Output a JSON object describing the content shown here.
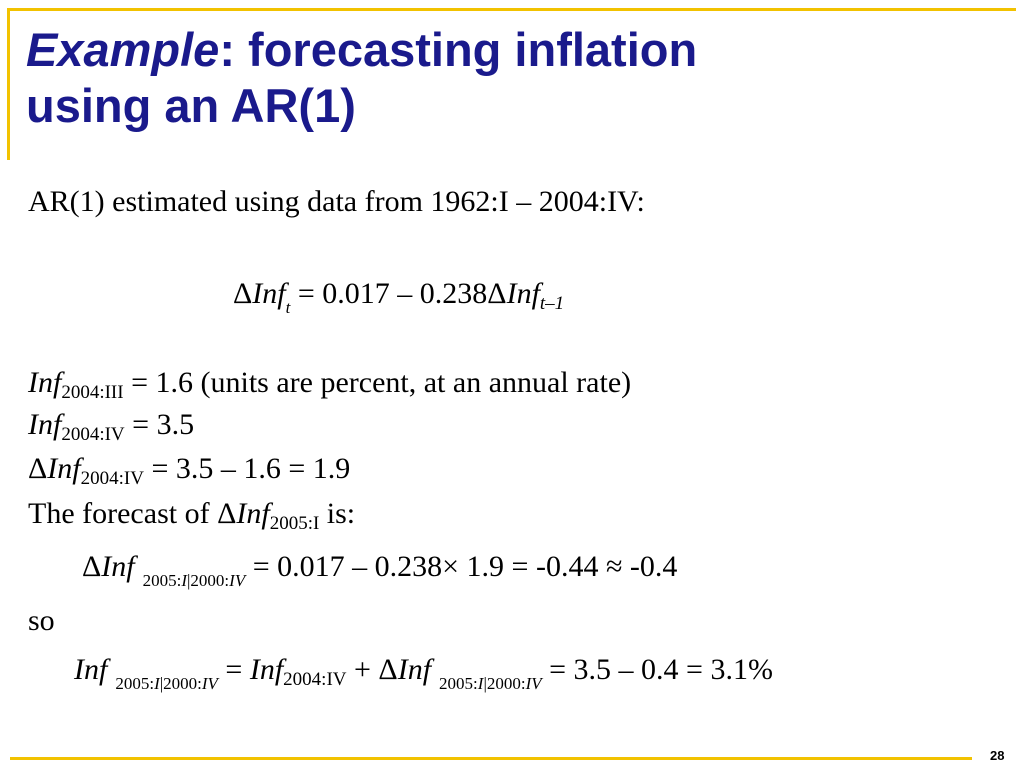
{
  "slide": {
    "title_italic": "Example",
    "title_line1_rest": ":  forecasting inflation",
    "title_line2": "using an AR(1)",
    "page_number": "28",
    "accent_color": "#f2c200",
    "title_color": "#1a1a8c"
  },
  "content": {
    "intro": "AR(1) estimated using data from 1962:I – 2004:IV:",
    "equation": {
      "delta": "Δ",
      "lhs_var": "Inf",
      "lhs_sub": "t",
      "rhs_text": " = 0.017 – 0.238Δ",
      "rhs_var": "Inf",
      "rhs_sub": "t–1"
    },
    "line1": {
      "var": "Inf",
      "sub": "2004:III",
      "text": " = 1.6 (units are percent, at an annual rate)"
    },
    "line2": {
      "var": "Inf",
      "sub": "2004:IV",
      "text": " = 3.5"
    },
    "line3": {
      "delta": "Δ",
      "var": "Inf",
      "sub": "2004:IV",
      "text": " = 3.5 – 1.6 = 1.9"
    },
    "line4": {
      "text_before": "The forecast of Δ",
      "var": "Inf",
      "sub": "2005:I",
      "text_after": " is:"
    },
    "forecast": {
      "delta": "Δ",
      "var": "Inf",
      "sub_a": "2005:",
      "sub_b": "I",
      "sub_c": "|2000:",
      "sub_d": "IV",
      "text": "  = 0.017 – 0.238× 1.9 = -0.44 ≈  -0.4"
    },
    "so": "so",
    "final": {
      "var": "Inf",
      "sub_a": "2005:",
      "sub_b": "I",
      "sub_c": "|2000:",
      "sub_d": "IV",
      "eq1": "  = ",
      "var2": "Inf",
      "sub2": "2004:IV",
      "plus": " + Δ",
      "var3": "Inf",
      "sub3_a": "2005:",
      "sub3_b": "I",
      "sub3_c": "|2000:",
      "sub3_d": "IV",
      "result": "  = 3.5 – 0.4 = 3.1%"
    }
  }
}
